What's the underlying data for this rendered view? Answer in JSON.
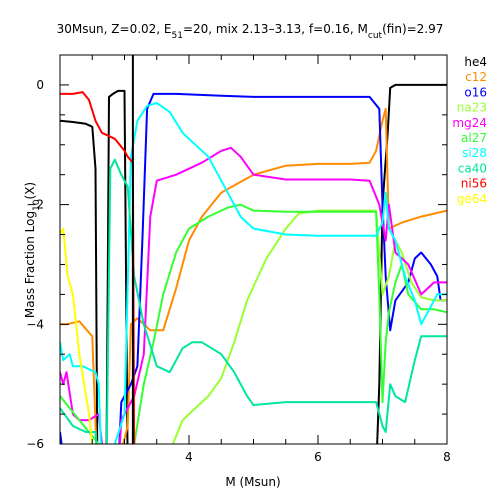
{
  "chart_data": {
    "type": "line",
    "title": {
      "prefix": "30Msun, Z=0.02, E",
      "e_sub": "51",
      "mid": "=20, mix 2.13–3.13, f=0.16, M",
      "m_sub": "cut",
      "suffix": "(fin)=2.97"
    },
    "xlabel": "M (Msun)",
    "ylabel": {
      "main": "Mass Fraction Log",
      "sub": "10",
      "tail": "(X)"
    },
    "xlim": [
      2.0,
      8.0
    ],
    "ylim": [
      -6.0,
      0.5
    ],
    "x_ticks": [
      {
        "v": 4,
        "label": "4"
      },
      {
        "v": 6,
        "label": "6"
      },
      {
        "v": 8,
        "label": "8"
      }
    ],
    "y_ticks": [
      {
        "v": 0,
        "label": "0"
      },
      {
        "v": -2,
        "label": "−2"
      },
      {
        "v": -4,
        "label": "−4"
      },
      {
        "v": -6,
        "label": "−6"
      }
    ],
    "cut_line_x": 3.13,
    "legend_placement": "right",
    "series": [
      {
        "name": "he4",
        "color": "#000000",
        "points": [
          [
            2.0,
            -0.6
          ],
          [
            2.2,
            -0.62
          ],
          [
            2.4,
            -0.65
          ],
          [
            2.5,
            -0.7
          ],
          [
            2.55,
            -1.4
          ],
          [
            2.58,
            -6.5
          ],
          [
            2.65,
            -6.5
          ],
          [
            2.72,
            -6.5
          ],
          [
            2.76,
            -0.2
          ],
          [
            2.82,
            -0.15
          ],
          [
            2.9,
            -0.1
          ],
          [
            3.0,
            -0.1
          ],
          [
            3.05,
            -6.5
          ],
          [
            6.9,
            -6.5
          ],
          [
            6.95,
            -5.0
          ],
          [
            7.0,
            -2.0
          ],
          [
            7.08,
            -0.8
          ],
          [
            7.12,
            -0.05
          ],
          [
            7.2,
            0
          ],
          [
            8.0,
            0
          ]
        ]
      },
      {
        "name": "c12",
        "color": "#ff8c00",
        "points": [
          [
            2.0,
            -4.0
          ],
          [
            2.1,
            -4.0
          ],
          [
            2.3,
            -3.95
          ],
          [
            2.5,
            -4.2
          ],
          [
            2.58,
            -6.5
          ],
          [
            2.9,
            -6.5
          ],
          [
            2.98,
            -6.0
          ],
          [
            3.05,
            -5.7
          ],
          [
            3.1,
            -4.0
          ],
          [
            3.2,
            -3.9
          ],
          [
            3.4,
            -4.1
          ],
          [
            3.6,
            -4.1
          ],
          [
            3.8,
            -3.4
          ],
          [
            4.0,
            -2.6
          ],
          [
            4.2,
            -2.2
          ],
          [
            4.5,
            -1.8
          ],
          [
            5.0,
            -1.5
          ],
          [
            5.5,
            -1.35
          ],
          [
            6.0,
            -1.32
          ],
          [
            6.5,
            -1.32
          ],
          [
            6.8,
            -1.3
          ],
          [
            6.9,
            -1.1
          ],
          [
            7.0,
            -0.6
          ],
          [
            7.05,
            -0.4
          ],
          [
            7.1,
            -2.4
          ],
          [
            7.3,
            -2.3
          ],
          [
            7.6,
            -2.2
          ],
          [
            8.0,
            -2.1
          ]
        ]
      },
      {
        "name": "o16",
        "color": "#0000ff",
        "points": [
          [
            2.0,
            -5.8
          ],
          [
            2.05,
            -6.2
          ],
          [
            2.1,
            -6.5
          ],
          [
            2.9,
            -6.5
          ],
          [
            2.95,
            -5.3
          ],
          [
            3.1,
            -5.0
          ],
          [
            3.2,
            -4.7
          ],
          [
            3.28,
            -2.5
          ],
          [
            3.35,
            -0.4
          ],
          [
            3.45,
            -0.15
          ],
          [
            3.8,
            -0.15
          ],
          [
            4.5,
            -0.18
          ],
          [
            5.0,
            -0.2
          ],
          [
            6.0,
            -0.2
          ],
          [
            6.8,
            -0.2
          ],
          [
            6.95,
            -0.4
          ],
          [
            7.0,
            -2.0
          ],
          [
            7.05,
            -3.2
          ],
          [
            7.12,
            -4.1
          ],
          [
            7.2,
            -3.6
          ],
          [
            7.4,
            -3.3
          ],
          [
            7.5,
            -2.9
          ],
          [
            7.6,
            -2.8
          ],
          [
            7.75,
            -3.0
          ],
          [
            7.85,
            -3.2
          ],
          [
            7.9,
            -3.6
          ],
          [
            8.0,
            -3.6
          ]
        ]
      },
      {
        "name": "na23",
        "color": "#99ff33",
        "points": [
          [
            3.7,
            -6.5
          ],
          [
            3.75,
            -6.0
          ],
          [
            3.9,
            -5.6
          ],
          [
            4.1,
            -5.4
          ],
          [
            4.3,
            -5.2
          ],
          [
            4.5,
            -4.9
          ],
          [
            4.7,
            -4.3
          ],
          [
            4.9,
            -3.6
          ],
          [
            5.2,
            -2.9
          ],
          [
            5.5,
            -2.4
          ],
          [
            5.7,
            -2.15
          ],
          [
            6.0,
            -2.1
          ],
          [
            6.5,
            -2.1
          ],
          [
            6.9,
            -2.1
          ],
          [
            6.95,
            -2.8
          ],
          [
            7.0,
            -3.5
          ],
          [
            7.1,
            -3.2
          ],
          [
            7.2,
            -2.6
          ],
          [
            7.3,
            -2.8
          ],
          [
            7.45,
            -3.3
          ],
          [
            7.6,
            -3.55
          ],
          [
            7.8,
            -3.6
          ],
          [
            8.0,
            -3.6
          ]
        ]
      },
      {
        "name": "mg24",
        "color": "#ff00ff",
        "points": [
          [
            2.0,
            -4.8
          ],
          [
            2.05,
            -5.0
          ],
          [
            2.1,
            -4.8
          ],
          [
            2.2,
            -5.5
          ],
          [
            2.3,
            -5.6
          ],
          [
            2.45,
            -5.6
          ],
          [
            2.6,
            -5.5
          ],
          [
            2.7,
            -6.5
          ],
          [
            2.9,
            -6.5
          ],
          [
            2.95,
            -5.6
          ],
          [
            3.05,
            -5.4
          ],
          [
            3.15,
            -5.2
          ],
          [
            3.3,
            -4.5
          ],
          [
            3.4,
            -2.2
          ],
          [
            3.5,
            -1.6
          ],
          [
            3.8,
            -1.5
          ],
          [
            4.2,
            -1.3
          ],
          [
            4.5,
            -1.1
          ],
          [
            4.65,
            -1.05
          ],
          [
            4.8,
            -1.2
          ],
          [
            5.0,
            -1.5
          ],
          [
            5.5,
            -1.58
          ],
          [
            6.0,
            -1.58
          ],
          [
            6.5,
            -1.58
          ],
          [
            6.8,
            -1.6
          ],
          [
            6.95,
            -2.0
          ],
          [
            7.0,
            -2.3
          ],
          [
            7.05,
            -2.6
          ],
          [
            7.1,
            -2.0
          ],
          [
            7.2,
            -2.8
          ],
          [
            7.4,
            -3.0
          ],
          [
            7.6,
            -3.5
          ],
          [
            7.8,
            -3.3
          ],
          [
            8.0,
            -3.3
          ]
        ]
      },
      {
        "name": "al27",
        "color": "#33ff33",
        "points": [
          [
            2.0,
            -5.2
          ],
          [
            2.3,
            -5.6
          ],
          [
            2.6,
            -6.0
          ],
          [
            2.7,
            -6.5
          ],
          [
            2.95,
            -6.5
          ],
          [
            3.0,
            -6.2
          ],
          [
            3.15,
            -6.0
          ],
          [
            3.3,
            -5.0
          ],
          [
            3.45,
            -4.3
          ],
          [
            3.6,
            -3.5
          ],
          [
            3.8,
            -2.8
          ],
          [
            4.0,
            -2.4
          ],
          [
            4.3,
            -2.2
          ],
          [
            4.6,
            -2.05
          ],
          [
            4.8,
            -2.0
          ],
          [
            5.0,
            -2.1
          ],
          [
            5.5,
            -2.12
          ],
          [
            6.0,
            -2.12
          ],
          [
            6.5,
            -2.12
          ],
          [
            6.9,
            -2.12
          ],
          [
            6.95,
            -3.5
          ],
          [
            7.0,
            -5.3
          ],
          [
            7.05,
            -4.3
          ],
          [
            7.1,
            -3.8
          ],
          [
            7.2,
            -3.3
          ],
          [
            7.3,
            -3.0
          ],
          [
            7.4,
            -3.5
          ],
          [
            7.6,
            -3.75
          ],
          [
            7.8,
            -3.75
          ],
          [
            8.0,
            -3.8
          ]
        ]
      },
      {
        "name": "si28",
        "color": "#00ffff",
        "points": [
          [
            2.0,
            -4.3
          ],
          [
            2.05,
            -4.6
          ],
          [
            2.15,
            -4.5
          ],
          [
            2.2,
            -4.7
          ],
          [
            2.35,
            -4.7
          ],
          [
            2.55,
            -4.8
          ],
          [
            2.6,
            -5.0
          ],
          [
            2.65,
            -6.5
          ],
          [
            2.8,
            -6.5
          ],
          [
            2.85,
            -6.0
          ],
          [
            3.0,
            -5.5
          ],
          [
            3.1,
            -1.2
          ],
          [
            3.2,
            -0.6
          ],
          [
            3.35,
            -0.35
          ],
          [
            3.5,
            -0.3
          ],
          [
            3.7,
            -0.45
          ],
          [
            3.9,
            -0.8
          ],
          [
            4.1,
            -1.0
          ],
          [
            4.3,
            -1.2
          ],
          [
            4.5,
            -1.6
          ],
          [
            4.8,
            -2.2
          ],
          [
            5.0,
            -2.4
          ],
          [
            5.5,
            -2.5
          ],
          [
            6.0,
            -2.52
          ],
          [
            6.5,
            -2.52
          ],
          [
            6.9,
            -2.52
          ],
          [
            7.0,
            -2.3
          ],
          [
            7.05,
            -1.8
          ],
          [
            7.1,
            -2.4
          ],
          [
            7.2,
            -2.6
          ],
          [
            7.35,
            -3.2
          ],
          [
            7.5,
            -3.6
          ],
          [
            7.6,
            -4.0
          ],
          [
            7.7,
            -3.8
          ],
          [
            7.85,
            -3.5
          ],
          [
            7.9,
            -3.5
          ],
          [
            8.0,
            -3.5
          ]
        ]
      },
      {
        "name": "ca40",
        "color": "#00e6a0",
        "points": [
          [
            2.0,
            -5.4
          ],
          [
            2.2,
            -5.7
          ],
          [
            2.4,
            -5.8
          ],
          [
            2.55,
            -5.8
          ],
          [
            2.6,
            -6.5
          ],
          [
            2.72,
            -6.5
          ],
          [
            2.78,
            -1.4
          ],
          [
            2.85,
            -1.25
          ],
          [
            2.95,
            -1.5
          ],
          [
            3.05,
            -1.7
          ],
          [
            3.15,
            -3.2
          ],
          [
            3.3,
            -4.0
          ],
          [
            3.5,
            -4.7
          ],
          [
            3.7,
            -4.8
          ],
          [
            3.9,
            -4.4
          ],
          [
            4.05,
            -4.3
          ],
          [
            4.2,
            -4.3
          ],
          [
            4.5,
            -4.5
          ],
          [
            4.7,
            -4.8
          ],
          [
            4.9,
            -5.2
          ],
          [
            5.0,
            -5.35
          ],
          [
            5.5,
            -5.3
          ],
          [
            6.0,
            -5.3
          ],
          [
            6.5,
            -5.3
          ],
          [
            6.9,
            -5.3
          ],
          [
            7.0,
            -5.7
          ],
          [
            7.05,
            -5.8
          ],
          [
            7.12,
            -5.0
          ],
          [
            7.2,
            -5.2
          ],
          [
            7.35,
            -5.3
          ],
          [
            7.5,
            -4.6
          ],
          [
            7.6,
            -4.2
          ],
          [
            7.8,
            -4.2
          ],
          [
            8.0,
            -4.2
          ]
        ]
      },
      {
        "name": "ni56",
        "color": "#ff0000",
        "points": [
          [
            2.0,
            -0.15
          ],
          [
            2.2,
            -0.15
          ],
          [
            2.35,
            -0.12
          ],
          [
            2.45,
            -0.25
          ],
          [
            2.55,
            -0.6
          ],
          [
            2.65,
            -0.8
          ],
          [
            2.75,
            -0.85
          ],
          [
            2.85,
            -0.9
          ],
          [
            3.0,
            -1.1
          ],
          [
            3.05,
            -1.2
          ],
          [
            3.13,
            -1.3
          ],
          [
            3.15,
            -6.5
          ]
        ]
      },
      {
        "name": "ge64",
        "color": "#ffff00",
        "points": [
          [
            2.0,
            -2.5
          ],
          [
            2.05,
            -2.4
          ],
          [
            2.12,
            -3.2
          ],
          [
            2.2,
            -3.5
          ],
          [
            2.3,
            -4.5
          ],
          [
            2.45,
            -5.5
          ],
          [
            2.55,
            -6.5
          ]
        ]
      }
    ]
  }
}
